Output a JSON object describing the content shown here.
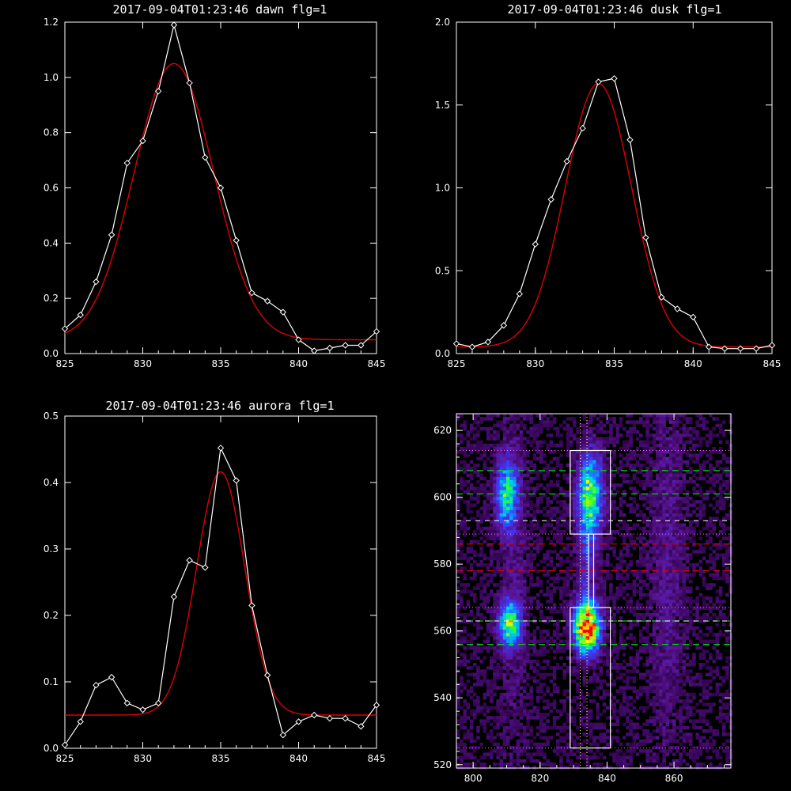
{
  "chart_data": [
    {
      "type": "line",
      "title": "2017-09-04T01:23:46 dawn flg=1",
      "xlim": [
        825,
        845
      ],
      "ylim": [
        0,
        1.2
      ],
      "xticks": [
        825,
        830,
        835,
        840,
        845
      ],
      "yticks": [
        0.0,
        0.2,
        0.4,
        0.6,
        0.8,
        1.0,
        1.2
      ],
      "ytick_labels": [
        "0.0",
        "0.2",
        "0.4",
        "0.6",
        "0.8",
        "1.0",
        "1.2"
      ],
      "colors": {
        "data": "#ffffff",
        "fit": "#dd0000"
      },
      "series": [
        {
          "kind": "data",
          "x": [
            825,
            826,
            827,
            828,
            829,
            830,
            831,
            832,
            833,
            834,
            835,
            836,
            837,
            838,
            839,
            840,
            841,
            842,
            843,
            844,
            845
          ],
          "y": [
            0.09,
            0.14,
            0.26,
            0.43,
            0.69,
            0.77,
            0.95,
            1.19,
            0.98,
            0.71,
            0.6,
            0.41,
            0.22,
            0.19,
            0.15,
            0.05,
            0.01,
            0.02,
            0.03,
            0.03,
            0.08
          ]
        },
        {
          "kind": "fit",
          "model": "gaussian",
          "amp": 1.0,
          "center": 832.0,
          "sigma": 2.55,
          "base": 0.05
        }
      ]
    },
    {
      "type": "line",
      "title": "2017-09-04T01:23:46 dusk flg=1",
      "xlim": [
        825,
        845
      ],
      "ylim": [
        0,
        2.0
      ],
      "xticks": [
        825,
        830,
        835,
        840,
        845
      ],
      "yticks": [
        0.0,
        0.5,
        1.0,
        1.5,
        2.0
      ],
      "ytick_labels": [
        "0.0",
        "0.5",
        "1.0",
        "1.5",
        "2.0"
      ],
      "colors": {
        "data": "#ffffff",
        "fit": "#dd0000"
      },
      "series": [
        {
          "kind": "data",
          "x": [
            825,
            826,
            827,
            828,
            829,
            830,
            831,
            832,
            833,
            834,
            835,
            836,
            837,
            838,
            839,
            840,
            841,
            842,
            843,
            844,
            845
          ],
          "y": [
            0.06,
            0.04,
            0.07,
            0.17,
            0.36,
            0.66,
            0.93,
            1.16,
            1.36,
            1.64,
            1.66,
            1.29,
            0.7,
            0.34,
            0.27,
            0.22,
            0.04,
            0.03,
            0.03,
            0.03,
            0.05
          ]
        },
        {
          "kind": "fit",
          "model": "gaussian",
          "amp": 1.59,
          "center": 834.0,
          "sigma": 2.1,
          "base": 0.04
        }
      ]
    },
    {
      "type": "line",
      "title": "2017-09-04T01:23:46 aurora flg=1",
      "xlim": [
        825,
        845
      ],
      "ylim": [
        0,
        0.5
      ],
      "xticks": [
        825,
        830,
        835,
        840,
        845
      ],
      "yticks": [
        0.0,
        0.1,
        0.2,
        0.3,
        0.4,
        0.5
      ],
      "ytick_labels": [
        "0.0",
        "0.1",
        "0.2",
        "0.3",
        "0.4",
        "0.5"
      ],
      "colors": {
        "data": "#ffffff",
        "fit": "#dd0000"
      },
      "series": [
        {
          "kind": "data",
          "x": [
            825,
            826,
            827,
            828,
            829,
            830,
            831,
            832,
            833,
            834,
            835,
            836,
            837,
            838,
            839,
            840,
            841,
            842,
            843,
            844,
            845
          ],
          "y": [
            0.005,
            0.04,
            0.095,
            0.107,
            0.068,
            0.058,
            0.068,
            0.228,
            0.283,
            0.272,
            0.452,
            0.403,
            0.215,
            0.11,
            0.02,
            0.04,
            0.05,
            0.045,
            0.045,
            0.033,
            0.065
          ]
        },
        {
          "kind": "fit",
          "model": "gaussian",
          "amp": 0.366,
          "center": 835.0,
          "sigma": 1.55,
          "base": 0.05
        }
      ]
    },
    {
      "type": "heatmap",
      "xlim": [
        795,
        877
      ],
      "ylim": [
        519,
        625
      ],
      "xticks": [
        800,
        820,
        840,
        860
      ],
      "yticks": [
        520,
        540,
        560,
        580,
        600,
        620
      ],
      "colors": {
        "box": "#ffffff",
        "green_line": "#00dd00",
        "red_line": "#dd0000",
        "vert_line": "#ffff66",
        "edge_line": "#ff66ff"
      },
      "blobs": [
        {
          "x": 810,
          "y": 601,
          "sx": 2.2,
          "sy": 7.0,
          "amp": 0.45
        },
        {
          "x": 835,
          "y": 601,
          "sx": 2.6,
          "sy": 8.5,
          "amp": 0.55
        },
        {
          "x": 811,
          "y": 562,
          "sx": 2.2,
          "sy": 4.5,
          "amp": 0.55
        },
        {
          "x": 834,
          "y": 561,
          "sx": 2.6,
          "sy": 5.0,
          "amp": 0.95
        },
        {
          "x": 834,
          "y": 580,
          "sx": 2.0,
          "sy": 12.0,
          "amp": 0.18
        },
        {
          "x": 858,
          "y": 580,
          "sx": 3.5,
          "sy": 40.0,
          "amp": 0.1
        },
        {
          "x": 812,
          "y": 580,
          "sx": 3.0,
          "sy": 40.0,
          "amp": 0.08
        }
      ],
      "boxes": [
        {
          "x0": 829,
          "x1": 841,
          "y0": 589,
          "y1": 614
        },
        {
          "x0": 829,
          "x1": 841,
          "y0": 525,
          "y1": 567
        },
        {
          "x0": 834.5,
          "x1": 836,
          "y0": 567,
          "y1": 589
        }
      ],
      "green_lines_y": [
        608,
        601,
        563,
        556
      ],
      "red_lines_y": [
        586,
        578
      ],
      "white_dashed_y": [
        593,
        563
      ],
      "dotted_y": [
        614,
        589,
        567,
        525
      ],
      "vertical_dotted_x": [
        832,
        834
      ]
    }
  ]
}
